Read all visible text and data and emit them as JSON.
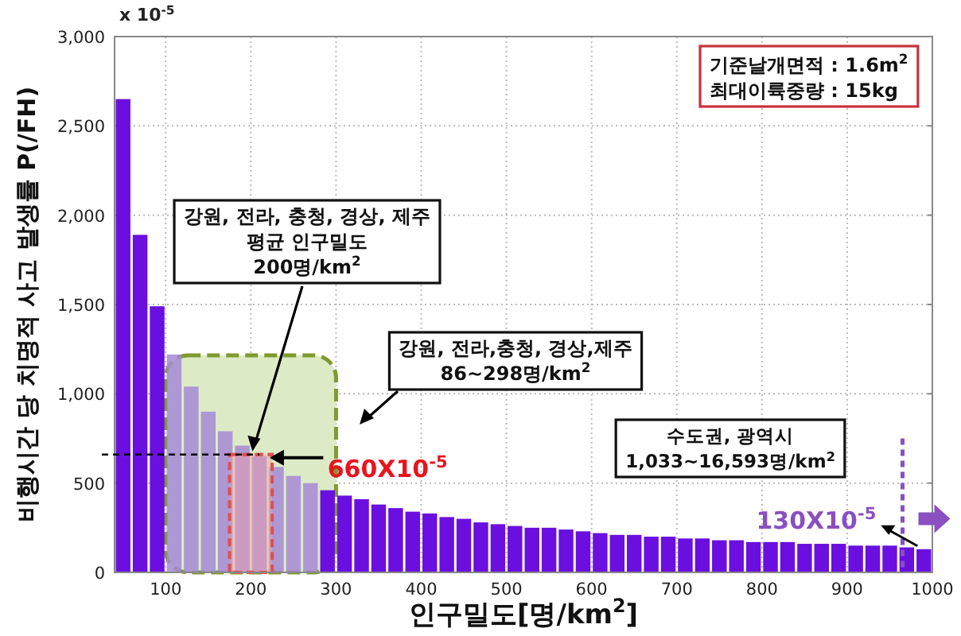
{
  "chart_data": {
    "type": "bar",
    "x": [
      50,
      70,
      90,
      110,
      130,
      150,
      170,
      190,
      210,
      230,
      250,
      270,
      290,
      310,
      330,
      350,
      370,
      390,
      410,
      430,
      450,
      470,
      490,
      510,
      530,
      550,
      570,
      590,
      610,
      630,
      650,
      670,
      690,
      710,
      730,
      750,
      770,
      790,
      810,
      830,
      850,
      870,
      890,
      910,
      930,
      950,
      970,
      990
    ],
    "values": [
      2650,
      1890,
      1490,
      1220,
      1040,
      900,
      790,
      710,
      650,
      590,
      540,
      500,
      460,
      430,
      410,
      380,
      360,
      340,
      330,
      310,
      300,
      280,
      270,
      260,
      250,
      250,
      240,
      230,
      220,
      210,
      210,
      200,
      200,
      190,
      190,
      180,
      180,
      170,
      170,
      170,
      160,
      160,
      160,
      150,
      150,
      150,
      140,
      130
    ],
    "colors": [
      "#6a0fe0",
      "#6a0fe0",
      "#6a0fe0",
      "#a58ad6",
      "#a58ad6",
      "#a58ad6",
      "#a58ad6",
      "#a58ad6",
      "#a58ad6",
      "#a58ad6",
      "#a58ad6",
      "#a58ad6",
      "#6a0fe0",
      "#6a0fe0",
      "#6a0fe0",
      "#6a0fe0",
      "#6a0fe0",
      "#6a0fe0",
      "#6a0fe0",
      "#6a0fe0",
      "#6a0fe0",
      "#6a0fe0",
      "#6a0fe0",
      "#6a0fe0",
      "#6a0fe0",
      "#6a0fe0",
      "#6a0fe0",
      "#6a0fe0",
      "#6a0fe0",
      "#6a0fe0",
      "#6a0fe0",
      "#6a0fe0",
      "#6a0fe0",
      "#6a0fe0",
      "#6a0fe0",
      "#6a0fe0",
      "#6a0fe0",
      "#6a0fe0",
      "#6a0fe0",
      "#6a0fe0",
      "#6a0fe0",
      "#6a0fe0",
      "#6a0fe0",
      "#6a0fe0",
      "#6a0fe0",
      "#6a0fe0",
      "#6a0fe0",
      "#6a0fe0"
    ],
    "xlim": [
      40,
      1000
    ],
    "ylim": [
      0,
      3000
    ],
    "xticks": [
      100,
      200,
      300,
      400,
      500,
      600,
      700,
      800,
      900,
      1000
    ],
    "yticks": [
      0,
      500,
      {
        "value": 1000,
        "label": "1,000"
      },
      {
        "value": 1500,
        "label": "1,500"
      },
      {
        "value": 2000,
        "label": "2,000"
      },
      {
        "value": 2500,
        "label": "2,500"
      },
      {
        "value": 3000,
        "label": "3,000"
      }
    ],
    "xlabel": "인구밀도[명/km$^{2}$]",
    "ylabel": "비행시간 당 치명적 사고 발생률 P(/FH)",
    "grid": true,
    "bands": [
      {
        "axis": "x",
        "from": 100,
        "to": 300,
        "color": "#dcebc6"
      },
      {
        "axis": "x",
        "from": 175,
        "to": 225,
        "color": "#e05050"
      }
    ],
    "ref_lines": [
      {
        "axis": "y",
        "value": 660,
        "label": "660X10$^{-5}$",
        "color": "#000000",
        "line_style": "dashed"
      },
      {
        "axis": "x",
        "value": 965,
        "color": "#8a4fc0",
        "line_style": "dashed"
      }
    ],
    "annotations": [
      "x 10$^{-5}$",
      "기준날개면적 : 1.6m$^{2}$",
      "최대이륙중량 : 15kg",
      "강원, 전라, 충청, 경상, 제주",
      "평균 인구밀도",
      {
        "text": "200명/km$^{2}$",
        "x": 200,
        "y": 660
      },
      "강원, 전라,충청, 경상,제주",
      "86~298명/km$^{2}$",
      "수도권, 광역시",
      "1,033~16,593명/km$^{2}$",
      {
        "text": "130X10$^{-5}$",
        "x": 990,
        "y": 130
      }
    ]
  }
}
